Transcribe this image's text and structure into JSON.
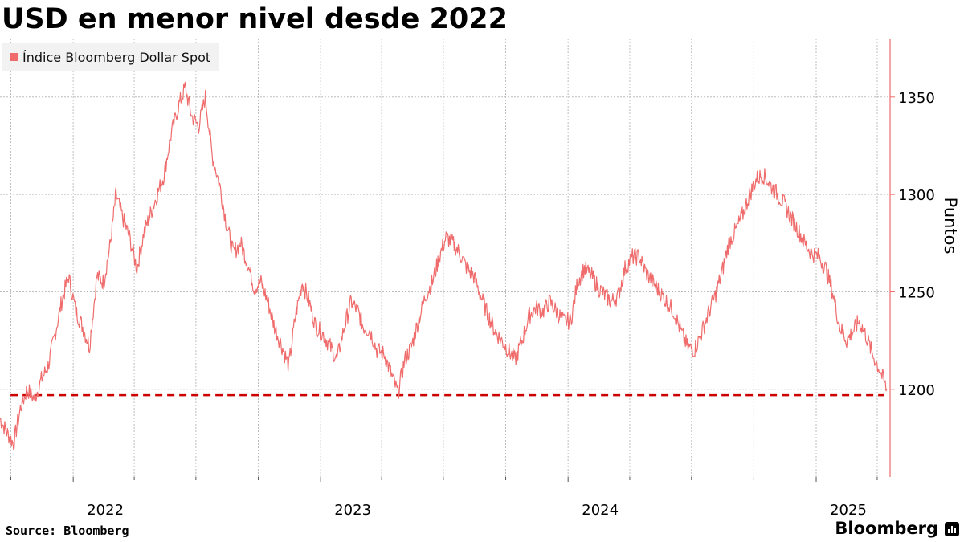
{
  "title": "USD en menor nivel desde 2022",
  "legend": {
    "label": "Índice Bloomberg Dollar Spot",
    "color": "#f06c6c"
  },
  "source": "Source: Bloomberg",
  "brand": "Bloomberg",
  "brand_icon": "bloomberg-terminal-icon",
  "chart_data": {
    "type": "line",
    "title": "USD en menor nivel desde 2022",
    "ylabel": "Puntos",
    "xlabel": "",
    "ylim": [
      1155,
      1380
    ],
    "yticks": [
      1200,
      1250,
      1300,
      1350
    ],
    "xlim": [
      "2021-09-15",
      "2025-04-20"
    ],
    "xtick_labels": [
      "2022",
      "2023",
      "2024",
      "2025"
    ],
    "xtick_dates": [
      "2022-01-01",
      "2023-01-01",
      "2024-01-01",
      "2025-01-01"
    ],
    "grid": true,
    "legend_position": "top-left",
    "series": [
      {
        "name": "Índice Bloomberg Dollar Spot",
        "color": "#f06c6c",
        "x": [
          "2021-09-15",
          "2021-09-25",
          "2021-10-05",
          "2021-10-15",
          "2021-10-25",
          "2021-11-05",
          "2021-11-15",
          "2021-11-25",
          "2021-12-05",
          "2021-12-15",
          "2021-12-25",
          "2022-01-05",
          "2022-01-15",
          "2022-01-25",
          "2022-02-05",
          "2022-02-15",
          "2022-02-25",
          "2022-03-05",
          "2022-03-15",
          "2022-03-25",
          "2022-04-05",
          "2022-04-15",
          "2022-04-25",
          "2022-05-05",
          "2022-05-15",
          "2022-05-25",
          "2022-06-05",
          "2022-06-15",
          "2022-06-25",
          "2022-07-05",
          "2022-07-15",
          "2022-07-25",
          "2022-08-05",
          "2022-08-15",
          "2022-08-25",
          "2022-09-05",
          "2022-09-15",
          "2022-09-25",
          "2022-10-05",
          "2022-10-15",
          "2022-10-25",
          "2022-11-05",
          "2022-11-15",
          "2022-11-25",
          "2022-12-05",
          "2022-12-15",
          "2022-12-25",
          "2023-01-05",
          "2023-01-15",
          "2023-01-25",
          "2023-02-05",
          "2023-02-15",
          "2023-02-25",
          "2023-03-05",
          "2023-03-15",
          "2023-03-25",
          "2023-04-05",
          "2023-04-15",
          "2023-04-25",
          "2023-05-05",
          "2023-05-15",
          "2023-05-25",
          "2023-06-05",
          "2023-06-15",
          "2023-06-25",
          "2023-07-05",
          "2023-07-15",
          "2023-07-25",
          "2023-08-05",
          "2023-08-15",
          "2023-08-25",
          "2023-09-05",
          "2023-09-15",
          "2023-09-25",
          "2023-10-05",
          "2023-10-15",
          "2023-10-25",
          "2023-11-05",
          "2023-11-15",
          "2023-11-25",
          "2023-12-05",
          "2023-12-15",
          "2023-12-25",
          "2024-01-05",
          "2024-01-15",
          "2024-01-25",
          "2024-02-05",
          "2024-02-15",
          "2024-02-25",
          "2024-03-05",
          "2024-03-15",
          "2024-03-25",
          "2024-04-05",
          "2024-04-15",
          "2024-04-25",
          "2024-05-05",
          "2024-05-15",
          "2024-05-25",
          "2024-06-05",
          "2024-06-15",
          "2024-06-25",
          "2024-07-05",
          "2024-07-15",
          "2024-07-25",
          "2024-08-05",
          "2024-08-15",
          "2024-08-25",
          "2024-09-05",
          "2024-09-15",
          "2024-09-25",
          "2024-10-05",
          "2024-10-15",
          "2024-10-25",
          "2024-11-05",
          "2024-11-15",
          "2024-11-25",
          "2024-12-05",
          "2024-12-15",
          "2024-12-25",
          "2025-01-05",
          "2025-01-15",
          "2025-01-25",
          "2025-02-05",
          "2025-02-15",
          "2025-02-25",
          "2025-03-05",
          "2025-03-15",
          "2025-03-25",
          "2025-04-05",
          "2025-04-15"
        ],
        "values": [
          1185,
          1178,
          1172,
          1190,
          1200,
          1195,
          1205,
          1212,
          1228,
          1245,
          1258,
          1240,
          1232,
          1222,
          1258,
          1255,
          1275,
          1300,
          1288,
          1278,
          1262,
          1280,
          1290,
          1300,
          1310,
          1330,
          1345,
          1355,
          1340,
          1335,
          1350,
          1320,
          1305,
          1285,
          1270,
          1275,
          1265,
          1252,
          1255,
          1245,
          1232,
          1222,
          1212,
          1238,
          1255,
          1245,
          1232,
          1228,
          1222,
          1215,
          1232,
          1245,
          1240,
          1232,
          1230,
          1220,
          1218,
          1208,
          1198,
          1215,
          1222,
          1235,
          1248,
          1255,
          1268,
          1278,
          1275,
          1270,
          1262,
          1258,
          1248,
          1238,
          1230,
          1225,
          1220,
          1215,
          1225,
          1238,
          1242,
          1240,
          1245,
          1240,
          1235,
          1235,
          1255,
          1262,
          1258,
          1252,
          1248,
          1245,
          1248,
          1262,
          1268,
          1268,
          1260,
          1255,
          1250,
          1245,
          1240,
          1230,
          1222,
          1220,
          1228,
          1238,
          1248,
          1260,
          1275,
          1282,
          1290,
          1300,
          1308,
          1310,
          1305,
          1300,
          1295,
          1288,
          1282,
          1275,
          1270,
          1268,
          1262,
          1250,
          1232,
          1225,
          1230,
          1235,
          1228,
          1218,
          1210,
          1200
        ]
      }
    ],
    "reference_lines": [
      {
        "value": 1197,
        "style": "dashed",
        "color": "#cc0000"
      }
    ]
  }
}
